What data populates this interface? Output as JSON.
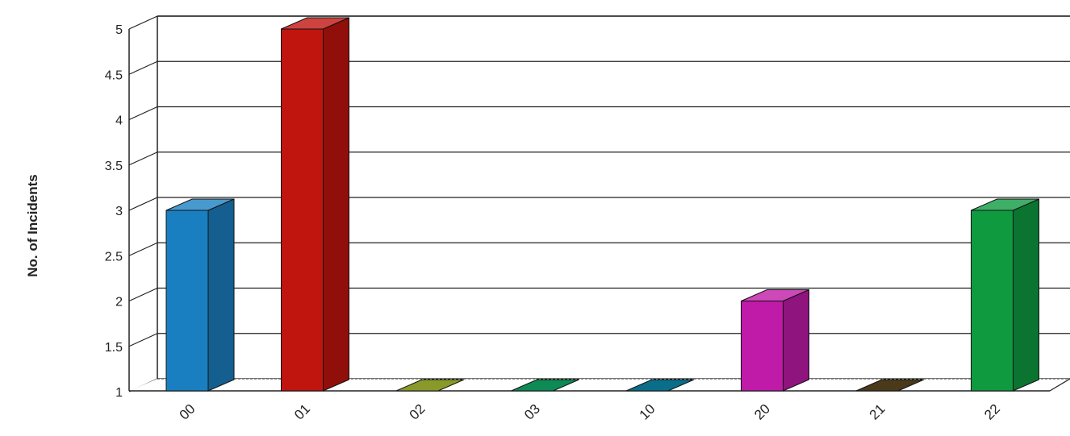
{
  "chart_data": {
    "type": "bar",
    "title": "",
    "xlabel": "",
    "ylabel": "No. of Incidents",
    "categories": [
      "00",
      "01",
      "02",
      "03",
      "10",
      "20",
      "21",
      "22"
    ],
    "values": [
      3,
      5,
      1,
      1,
      1,
      2,
      1,
      3
    ],
    "ylim": [
      1,
      5
    ],
    "yticks": [
      "1",
      "1.5",
      "2",
      "2.5",
      "3",
      "3.5",
      "4",
      "4.5",
      "5"
    ],
    "grid": true,
    "style": "3d",
    "colors": [
      "#1a7fc0",
      "#c0140f",
      "#8a9a2a",
      "#0e8a55",
      "#0a6e8a",
      "#c01aa8",
      "#4a3a1a",
      "#0f9a40"
    ]
  }
}
